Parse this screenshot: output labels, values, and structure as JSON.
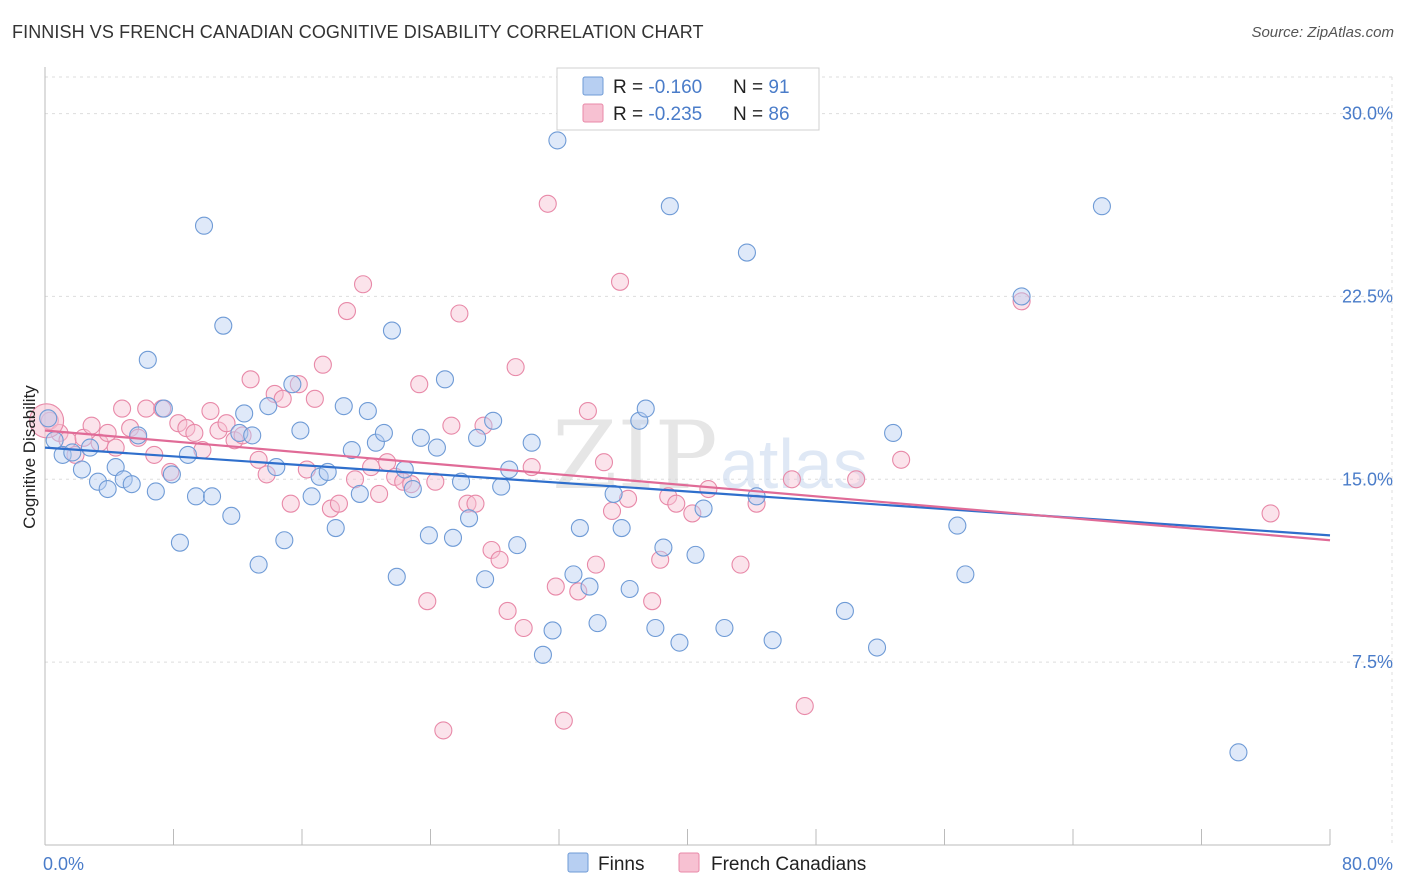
{
  "title": "FINNISH VS FRENCH CANADIAN COGNITIVE DISABILITY CORRELATION CHART",
  "source": "Source: ZipAtlas.com",
  "watermark": {
    "zip": "ZIP",
    "atlas": "atlas"
  },
  "colors": {
    "finns_fill": "#b7cff2",
    "finns_stroke": "#6f9bd6",
    "finns_line": "#2f6fcc",
    "fc_fill": "#f7c1d2",
    "fc_stroke": "#e889a8",
    "fc_line": "#e06b97",
    "tick_text": "#4a7cc9",
    "grid": "#dddddd"
  },
  "legend": {
    "rows": [
      {
        "r_label": "R = ",
        "r_value": "-0.160",
        "n_label": "N = ",
        "n_value": "91"
      },
      {
        "r_label": "R = ",
        "r_value": "-0.235",
        "n_label": "N = ",
        "n_value": "86"
      }
    ]
  },
  "bottom_legend": {
    "finns": "Finns",
    "french_canadians": "French Canadians"
  },
  "chart_data": {
    "type": "scatter",
    "title": "FINNISH VS FRENCH CANADIAN COGNITIVE DISABILITY CORRELATION CHART",
    "xlabel": "",
    "ylabel": "Cognitive Disability",
    "xlim": [
      0,
      80
    ],
    "ylim": [
      0,
      31.5
    ],
    "x_tick_labels": [
      "0.0%",
      "80.0%"
    ],
    "y_ticks": [
      7.5,
      15.0,
      22.5,
      30.0
    ],
    "y_tick_labels": [
      "7.5%",
      "15.0%",
      "22.5%",
      "30.0%"
    ],
    "grid": true,
    "legend_position": "top-center",
    "series": [
      {
        "name": "Finns",
        "R": -0.16,
        "N": 91,
        "trend": [
          [
            0,
            16.3
          ],
          [
            80,
            12.7
          ]
        ],
        "points": [
          [
            0.2,
            17.5
          ],
          [
            0.6,
            16.6
          ],
          [
            1.1,
            16.0
          ],
          [
            1.7,
            16.1
          ],
          [
            2.3,
            15.4
          ],
          [
            2.8,
            16.3
          ],
          [
            3.3,
            14.9
          ],
          [
            3.9,
            14.6
          ],
          [
            4.4,
            15.5
          ],
          [
            4.9,
            15.0
          ],
          [
            5.4,
            14.8
          ],
          [
            5.8,
            16.8
          ],
          [
            6.4,
            19.9
          ],
          [
            6.9,
            14.5
          ],
          [
            7.4,
            17.9
          ],
          [
            7.9,
            15.2
          ],
          [
            8.4,
            12.4
          ],
          [
            8.9,
            16.0
          ],
          [
            9.4,
            14.3
          ],
          [
            9.9,
            25.4
          ],
          [
            10.4,
            14.3
          ],
          [
            11.1,
            21.3
          ],
          [
            11.6,
            13.5
          ],
          [
            12.1,
            16.9
          ],
          [
            12.4,
            17.7
          ],
          [
            12.9,
            16.8
          ],
          [
            13.3,
            11.5
          ],
          [
            13.9,
            18.0
          ],
          [
            14.4,
            15.5
          ],
          [
            14.9,
            12.5
          ],
          [
            15.4,
            18.9
          ],
          [
            15.9,
            17.0
          ],
          [
            16.6,
            14.3
          ],
          [
            17.1,
            15.1
          ],
          [
            17.6,
            15.3
          ],
          [
            18.1,
            13.0
          ],
          [
            18.6,
            18.0
          ],
          [
            19.1,
            16.2
          ],
          [
            19.6,
            14.4
          ],
          [
            20.1,
            17.8
          ],
          [
            20.6,
            16.5
          ],
          [
            21.1,
            16.9
          ],
          [
            21.6,
            21.1
          ],
          [
            21.9,
            11.0
          ],
          [
            22.4,
            15.4
          ],
          [
            22.9,
            14.6
          ],
          [
            23.4,
            16.7
          ],
          [
            23.9,
            12.7
          ],
          [
            24.4,
            16.3
          ],
          [
            24.9,
            19.1
          ],
          [
            25.4,
            12.6
          ],
          [
            25.9,
            14.9
          ],
          [
            26.4,
            13.4
          ],
          [
            26.9,
            16.7
          ],
          [
            27.4,
            10.9
          ],
          [
            27.9,
            17.4
          ],
          [
            28.4,
            14.7
          ],
          [
            28.9,
            15.4
          ],
          [
            29.4,
            12.3
          ],
          [
            30.3,
            16.5
          ],
          [
            31.0,
            7.8
          ],
          [
            31.6,
            8.8
          ],
          [
            31.9,
            28.9
          ],
          [
            32.9,
            11.1
          ],
          [
            33.3,
            13.0
          ],
          [
            33.9,
            10.6
          ],
          [
            34.4,
            9.1
          ],
          [
            35.4,
            14.4
          ],
          [
            35.9,
            13.0
          ],
          [
            36.4,
            10.5
          ],
          [
            37.0,
            17.4
          ],
          [
            37.4,
            17.9
          ],
          [
            38.0,
            8.9
          ],
          [
            38.5,
            12.2
          ],
          [
            38.9,
            26.2
          ],
          [
            39.5,
            8.3
          ],
          [
            40.5,
            11.9
          ],
          [
            41.0,
            13.8
          ],
          [
            42.3,
            8.9
          ],
          [
            43.7,
            24.3
          ],
          [
            44.3,
            14.3
          ],
          [
            45.3,
            8.4
          ],
          [
            49.8,
            9.6
          ],
          [
            51.8,
            8.1
          ],
          [
            52.8,
            16.9
          ],
          [
            56.8,
            13.1
          ],
          [
            57.3,
            11.1
          ],
          [
            60.8,
            22.5
          ],
          [
            65.8,
            26.2
          ],
          [
            74.3,
            3.8
          ],
          [
            35.0,
            30.0
          ]
        ]
      },
      {
        "name": "French Canadians",
        "R": -0.235,
        "N": 86,
        "trend": [
          [
            0,
            17.0
          ],
          [
            80,
            12.5
          ]
        ],
        "points": [
          [
            0.3,
            17.4
          ],
          [
            0.9,
            16.9
          ],
          [
            1.4,
            16.6
          ],
          [
            1.9,
            16.0
          ],
          [
            2.4,
            16.7
          ],
          [
            2.9,
            17.2
          ],
          [
            3.4,
            16.5
          ],
          [
            3.9,
            16.9
          ],
          [
            4.4,
            16.3
          ],
          [
            4.8,
            17.9
          ],
          [
            5.3,
            17.1
          ],
          [
            5.8,
            16.7
          ],
          [
            6.3,
            17.9
          ],
          [
            6.8,
            16.0
          ],
          [
            7.3,
            17.9
          ],
          [
            7.8,
            15.3
          ],
          [
            8.3,
            17.3
          ],
          [
            8.8,
            17.1
          ],
          [
            9.3,
            16.9
          ],
          [
            9.8,
            16.2
          ],
          [
            10.3,
            17.8
          ],
          [
            10.8,
            17.0
          ],
          [
            11.3,
            17.3
          ],
          [
            11.8,
            16.6
          ],
          [
            12.3,
            16.8
          ],
          [
            12.8,
            19.1
          ],
          [
            13.3,
            15.8
          ],
          [
            13.8,
            15.2
          ],
          [
            14.3,
            18.5
          ],
          [
            14.8,
            18.3
          ],
          [
            15.3,
            14.0
          ],
          [
            15.8,
            18.9
          ],
          [
            16.3,
            15.4
          ],
          [
            16.8,
            18.3
          ],
          [
            17.3,
            19.7
          ],
          [
            17.8,
            13.8
          ],
          [
            18.3,
            14.0
          ],
          [
            18.8,
            21.9
          ],
          [
            19.3,
            15.0
          ],
          [
            19.8,
            23.0
          ],
          [
            20.3,
            15.5
          ],
          [
            20.8,
            14.4
          ],
          [
            21.3,
            15.7
          ],
          [
            21.8,
            15.1
          ],
          [
            22.3,
            14.9
          ],
          [
            22.8,
            14.8
          ],
          [
            23.3,
            18.9
          ],
          [
            23.8,
            10.0
          ],
          [
            24.3,
            14.9
          ],
          [
            24.8,
            4.7
          ],
          [
            25.3,
            17.2
          ],
          [
            25.8,
            21.8
          ],
          [
            26.3,
            14.0
          ],
          [
            26.8,
            14.0
          ],
          [
            27.3,
            17.2
          ],
          [
            27.8,
            12.1
          ],
          [
            28.3,
            11.7
          ],
          [
            28.8,
            9.6
          ],
          [
            29.3,
            19.6
          ],
          [
            29.8,
            8.9
          ],
          [
            30.3,
            15.5
          ],
          [
            31.3,
            26.3
          ],
          [
            31.8,
            10.6
          ],
          [
            32.3,
            5.1
          ],
          [
            33.2,
            10.4
          ],
          [
            33.8,
            17.8
          ],
          [
            34.3,
            11.5
          ],
          [
            34.8,
            15.7
          ],
          [
            35.3,
            13.7
          ],
          [
            35.8,
            23.1
          ],
          [
            36.3,
            14.2
          ],
          [
            37.3,
            30.0
          ],
          [
            37.8,
            10.0
          ],
          [
            38.3,
            11.7
          ],
          [
            38.8,
            14.3
          ],
          [
            39.3,
            14.0
          ],
          [
            40.3,
            13.6
          ],
          [
            41.3,
            14.6
          ],
          [
            43.3,
            11.5
          ],
          [
            44.3,
            14.0
          ],
          [
            46.5,
            15.0
          ],
          [
            47.3,
            5.7
          ],
          [
            50.5,
            15.0
          ],
          [
            53.3,
            15.8
          ],
          [
            60.8,
            22.3
          ],
          [
            76.3,
            13.6
          ]
        ]
      }
    ]
  }
}
